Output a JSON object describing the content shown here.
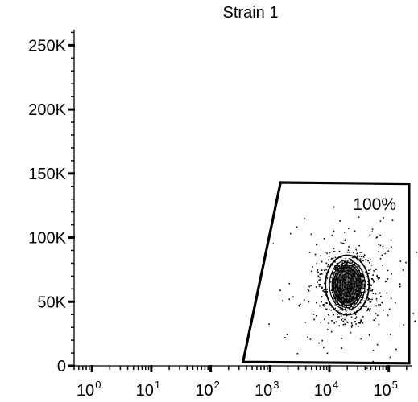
{
  "chart_data": {
    "type": "scatter",
    "title": "Strain 1",
    "xlabel": "",
    "ylabel": "",
    "x_scale": "log",
    "x_range": [
      0.5,
      250000
    ],
    "y_range": [
      0,
      262144
    ],
    "x_ticks": [
      {
        "base": "10",
        "exp": "0",
        "value": 1
      },
      {
        "base": "10",
        "exp": "1",
        "value": 10
      },
      {
        "base": "10",
        "exp": "2",
        "value": 100
      },
      {
        "base": "10",
        "exp": "3",
        "value": 1000
      },
      {
        "base": "10",
        "exp": "4",
        "value": 10000
      },
      {
        "base": "10",
        "exp": "5",
        "value": 100000
      }
    ],
    "y_ticks": [
      {
        "label": "0",
        "value": 0
      },
      {
        "label": "50K",
        "value": 50000
      },
      {
        "label": "100K",
        "value": 100000
      },
      {
        "label": "150K",
        "value": 150000
      },
      {
        "label": "200K",
        "value": 200000
      },
      {
        "label": "250K",
        "value": 250000
      }
    ],
    "gate": {
      "label": "100%",
      "vertices": [
        [
          350,
          3000
        ],
        [
          1500,
          143000
        ],
        [
          220000,
          142000
        ],
        [
          220000,
          2000
        ]
      ]
    },
    "population": {
      "center": [
        20000,
        63000
      ],
      "count_note": "dense contour population",
      "color": "#000000"
    },
    "grid": false,
    "legend": "none"
  }
}
